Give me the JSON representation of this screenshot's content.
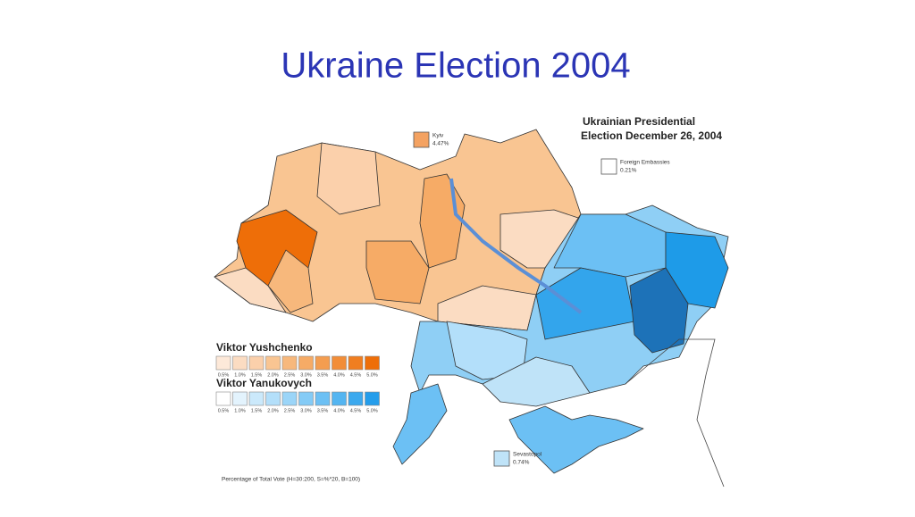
{
  "title": "Ukraine Election 2004",
  "map_title": [
    "Ukrainian Presidential",
    "Election December 26, 2004"
  ],
  "callouts": [
    {
      "label": "Kyiv",
      "value": "4.47%",
      "color": "#f4a261"
    },
    {
      "label": "Foreign Embassies",
      "value": "0.21%",
      "color": "#ffffff"
    },
    {
      "label": "Sevastopol",
      "value": "0.74%",
      "color": "#bfe3f8"
    }
  ],
  "legend": [
    {
      "name": "Viktor Yushchenko",
      "colors": [
        "#fde9d9",
        "#fbdcc2",
        "#fbd0ab",
        "#f9c592",
        "#f7b87c",
        "#f6ab66",
        "#f49d50",
        "#f28d38",
        "#f07e20",
        "#ee6e08"
      ],
      "labels": [
        "0.5%",
        "1.0%",
        "1.5%",
        "2.0%",
        "2.5%",
        "3.0%",
        "3.5%",
        "4.0%",
        "4.5%",
        "5.0%"
      ]
    },
    {
      "name": "Viktor Yanukovych",
      "colors": [
        "#ffffff",
        "#e3f3fd",
        "#cbe9fb",
        "#b3dffa",
        "#9bd5f8",
        "#84cbf6",
        "#6cc0f4",
        "#54b5f1",
        "#3ca9ee",
        "#249deb"
      ],
      "labels": [
        "0.5%",
        "1.0%",
        "1.5%",
        "2.0%",
        "2.5%",
        "3.0%",
        "3.5%",
        "4.0%",
        "4.5%",
        "5.0%"
      ]
    }
  ],
  "footnote": "Percentage of Total Vote (H=30:200, S=%*20, B=100)"
}
